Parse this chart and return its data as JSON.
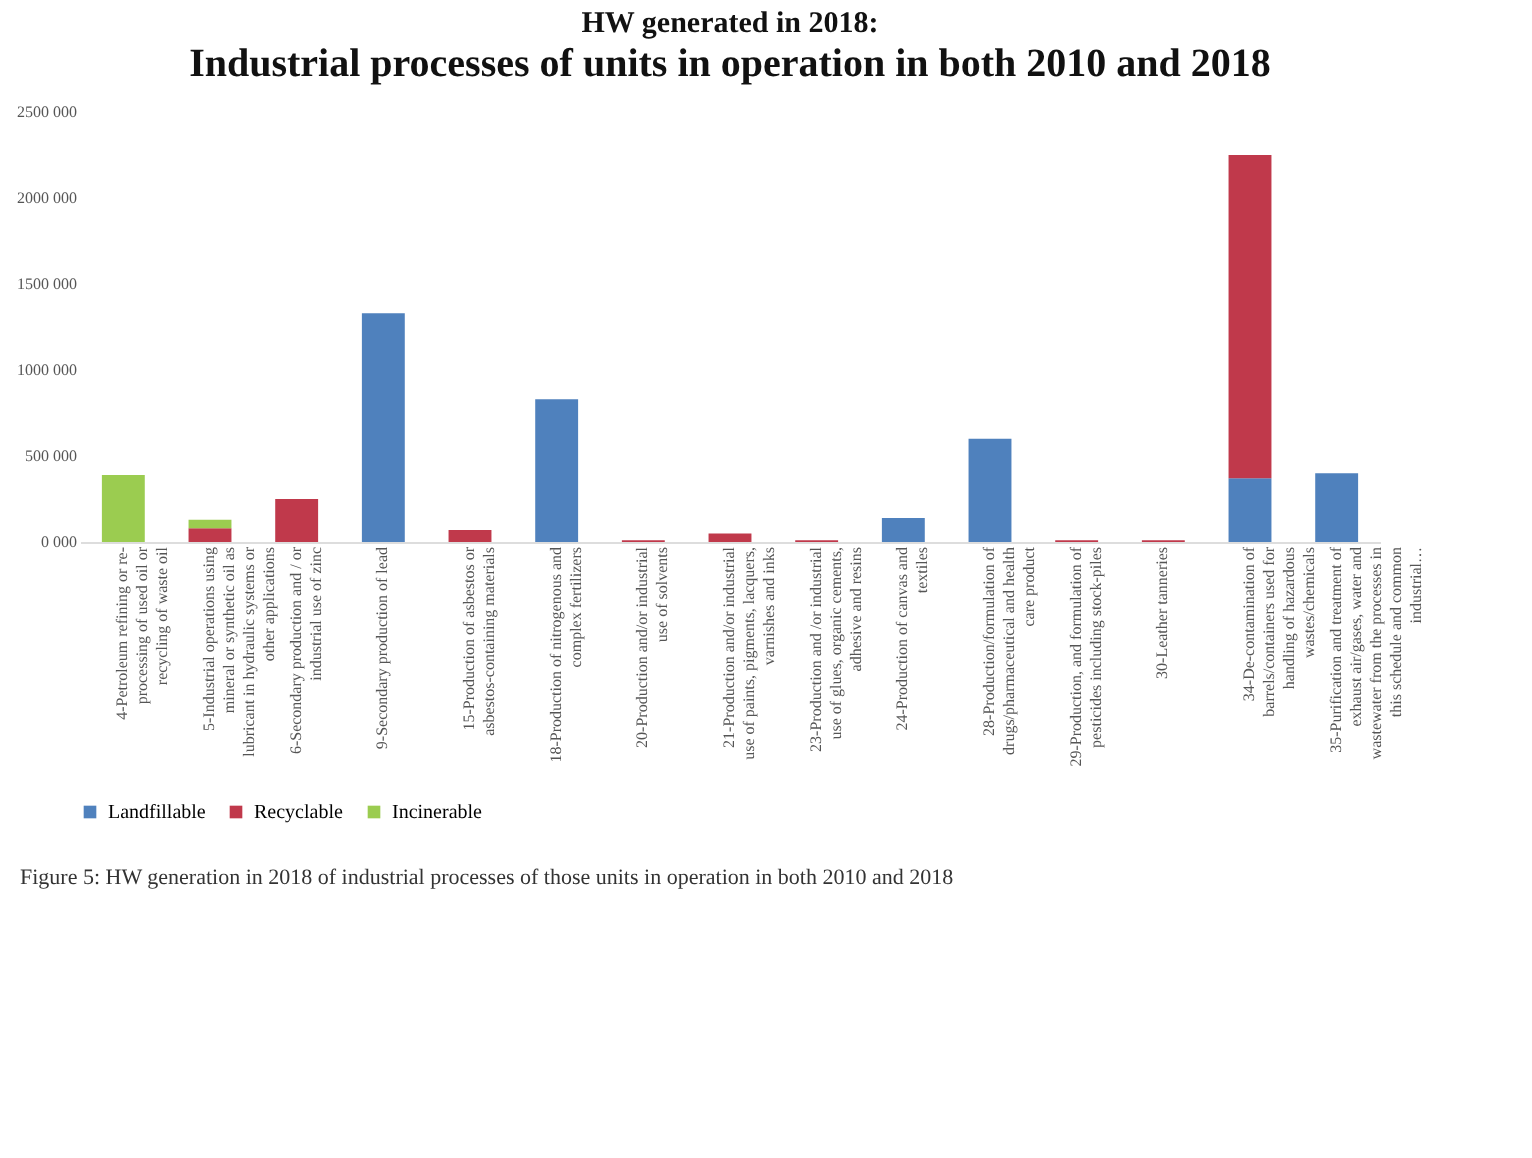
{
  "chart_data": {
    "type": "bar",
    "stacked": true,
    "title": "HW generated in 2018:",
    "subtitle": "Industrial processes of units in operation in both 2010 and 2018",
    "categories": [
      "4-Petroleum refining or re- processing of used oil or recycling of waste oil",
      "5-Industrial operations using mineral or synthetic oil as lubricant in hydraulic systems or other applications",
      "6-Secondary production and / or industrial use of zinc",
      "9-Secondary production of lead",
      "15-Production of asbestos or asbestos-containing materials",
      "18-Production of nitrogenous and complex fertilizers",
      "20-Production and/or industrial use of solvents",
      "21-Production and/or industrial use of paints, pigments, lacquers, varnishes and inks",
      "23-Production and /or industrial use of glues, organic cements, adhesive and resins",
      "24-Production of canvas and textiles",
      "28-Production/formulation of drugs/pharmaceutical and health care product",
      "29-Production, and formulation of pesticides including stock-piles",
      "30-Leather tanneries",
      "34-De-contamination of barrels/containers used for handling of hazardous wastes/chemicals",
      "35-Purification and treatment of exhaust air/gases, water and wastewater from the processes in this schedule and common industrial…"
    ],
    "series": [
      {
        "name": "Landfillable",
        "color": "#4f81bd",
        "values": [
          null,
          null,
          null,
          1330000,
          null,
          830000,
          null,
          null,
          null,
          140000,
          600000,
          null,
          null,
          370000,
          400000
        ]
      },
      {
        "name": "Recyclable",
        "color": "#c0394b",
        "values": [
          null,
          80000,
          250000,
          null,
          70000,
          null,
          10000,
          50000,
          10000,
          null,
          null,
          10000,
          10000,
          1880000,
          null
        ]
      },
      {
        "name": "Incinerable",
        "color": "#9bcc50",
        "values": [
          390000,
          50000,
          null,
          null,
          null,
          null,
          null,
          null,
          null,
          null,
          null,
          null,
          null,
          null,
          null
        ]
      }
    ],
    "ylim": [
      0,
      2500000
    ],
    "yticks": [
      {
        "value": 0,
        "label": "0 000"
      },
      {
        "value": 500000,
        "label": "500 000"
      },
      {
        "value": 1000000,
        "label": "1000 000"
      },
      {
        "value": 1500000,
        "label": "1500 000"
      },
      {
        "value": 2000000,
        "label": "2000 000"
      },
      {
        "value": 2500000,
        "label": "2500 000"
      }
    ],
    "grid": false,
    "legend": "bottom",
    "annotations": [
      "Figure 5: HW generation in 2018 of industrial processes of those units in operation in both 2010 and 2018"
    ]
  }
}
